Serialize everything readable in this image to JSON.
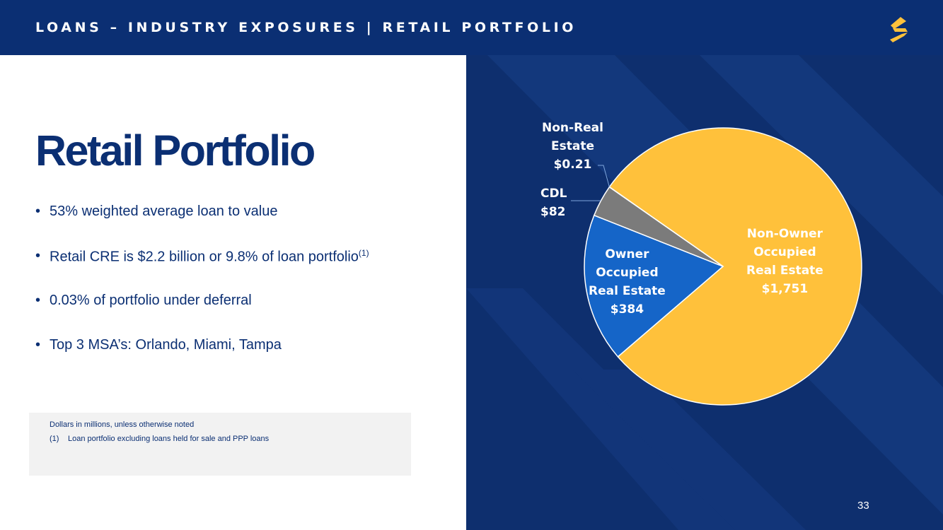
{
  "header": {
    "title": "LOANS – INDUSTRY EXPOSURES | RETAIL PORTFOLIO"
  },
  "main": {
    "title": "Retail Portfolio",
    "bullets": [
      {
        "text": "53% weighted average loan to value",
        "sup": ""
      },
      {
        "text": "Retail CRE is $2.2 billion or 9.8% of loan portfolio",
        "sup": "(1)"
      },
      {
        "text": "0.03% of portfolio under deferral",
        "sup": ""
      },
      {
        "text": "Top 3 MSA’s: Orlando, Miami, Tampa",
        "sup": ""
      }
    ]
  },
  "footnotes": {
    "line1": "Dollars in millions, unless otherwise noted",
    "line2_num": "(1)",
    "line2_text": "Loan portfolio excluding loans held for sale and PPP loans"
  },
  "page_number": "33",
  "colors": {
    "brand_navy": "#0b2f73",
    "panel_blue": "#0e2f6e",
    "logo_gold": "#ffc13b"
  },
  "icons": {
    "logo": "company-logo-s"
  },
  "chart_data": {
    "type": "pie",
    "unit": "Dollars in millions",
    "slices": [
      {
        "label_lines": [
          "Non-Owner",
          "Occupied",
          "Real Estate"
        ],
        "value_label": "$1,751",
        "value": 1751,
        "color": "#ffc13b",
        "label_color": "#ffffff"
      },
      {
        "label_lines": [
          "Owner",
          "Occupied",
          "Real Estate"
        ],
        "value_label": "$384",
        "value": 384,
        "color": "#1565c8",
        "label_color": "#ffffff"
      },
      {
        "label_lines": [
          "CDL"
        ],
        "value_label": "$82",
        "value": 82,
        "color": "#7b7b7b",
        "label_color": "#ffffff"
      },
      {
        "label_lines": [
          "Non-Real",
          "Estate"
        ],
        "value_label": "$0.21",
        "value": 0.21,
        "color": "#7b7b7b",
        "label_color": "#ffffff"
      }
    ]
  }
}
